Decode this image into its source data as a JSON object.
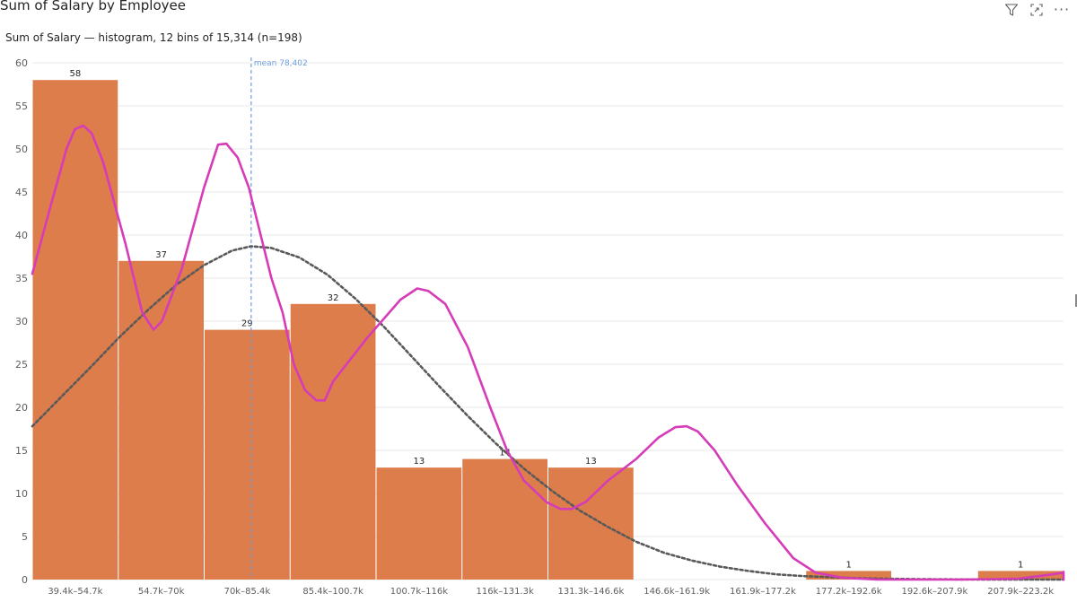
{
  "visual": {
    "title": "Sum of Salary by Employee",
    "subtitle": "Sum of Salary — histogram, 12 bins of 15,314 (n=198)",
    "icons": [
      "filter-icon",
      "focus-mode-icon",
      "more-options-icon"
    ],
    "more_label": "···"
  },
  "chart_data": {
    "type": "bar",
    "categories": [
      "39.4k–54.7k",
      "54.7k–70k",
      "70k–85.4k",
      "85.4k–100.7k",
      "100.7k–116k",
      "116k–131.3k",
      "131.3k–146.6k",
      "146.6k–161.9k",
      "161.9k–177.2k",
      "177.2k–192.6k",
      "192.6k–207.9k",
      "207.9k–223.2k"
    ],
    "values": [
      58,
      37,
      29,
      32,
      13,
      14,
      13,
      0,
      0,
      1,
      0,
      1
    ],
    "data_labels": [
      "58",
      "37",
      "29",
      "32",
      "13",
      "14",
      "13",
      "",
      "",
      "1",
      "",
      "1"
    ],
    "bin_start": 39400,
    "bin_width": 15314,
    "ylim": [
      0,
      60
    ],
    "yticks": [
      0,
      5,
      10,
      15,
      20,
      25,
      30,
      35,
      40,
      45,
      50,
      55,
      60
    ],
    "grid": true,
    "mean": {
      "value": 78402,
      "label": "mean 78,402"
    },
    "kde_curve": [
      [
        39400,
        35.5
      ],
      [
        42500,
        43
      ],
      [
        45500,
        50
      ],
      [
        47000,
        52.3
      ],
      [
        48500,
        52.7
      ],
      [
        50000,
        51.8
      ],
      [
        52000,
        48.5
      ],
      [
        56000,
        39
      ],
      [
        59000,
        31
      ],
      [
        61000,
        29
      ],
      [
        62500,
        30
      ],
      [
        66000,
        36
      ],
      [
        70000,
        45.5
      ],
      [
        72500,
        50.5
      ],
      [
        74000,
        50.6
      ],
      [
        76000,
        49
      ],
      [
        78000,
        45.5
      ],
      [
        82000,
        35
      ],
      [
        84000,
        31
      ],
      [
        86000,
        25
      ],
      [
        88000,
        22
      ],
      [
        90000,
        20.8
      ],
      [
        91500,
        20.8
      ],
      [
        93000,
        23
      ],
      [
        99000,
        28
      ],
      [
        105000,
        32.5
      ],
      [
        108000,
        33.8
      ],
      [
        110000,
        33.5
      ],
      [
        113000,
        32
      ],
      [
        117000,
        27
      ],
      [
        121000,
        20
      ],
      [
        124000,
        15
      ],
      [
        127000,
        11.5
      ],
      [
        131000,
        9
      ],
      [
        133500,
        8.2
      ],
      [
        135500,
        8.2
      ],
      [
        138000,
        9
      ],
      [
        142000,
        11.5
      ],
      [
        147000,
        14
      ],
      [
        151000,
        16.5
      ],
      [
        154000,
        17.7
      ],
      [
        156000,
        17.8
      ],
      [
        158000,
        17.2
      ],
      [
        161000,
        15
      ],
      [
        165000,
        11
      ],
      [
        170000,
        6.5
      ],
      [
        175000,
        2.5
      ],
      [
        179000,
        0.8
      ],
      [
        184000,
        0.2
      ],
      [
        190000,
        0
      ],
      [
        205000,
        0
      ],
      [
        215000,
        0.1
      ],
      [
        220000,
        0.5
      ],
      [
        225000,
        0.8
      ],
      [
        230000,
        0.9
      ],
      [
        235000,
        0.6
      ],
      [
        240000,
        0.2
      ],
      [
        245000,
        0
      ],
      [
        250000,
        0
      ],
      [
        255000,
        0
      ],
      [
        260000,
        0.1
      ],
      [
        265000,
        0.5
      ],
      [
        270000,
        0.8
      ],
      [
        276000,
        0.9
      ]
    ],
    "normal_curve": [
      [
        39400,
        17.8
      ],
      [
        45000,
        21.5
      ],
      [
        50000,
        24.8
      ],
      [
        55000,
        28.2
      ],
      [
        60000,
        31.3
      ],
      [
        65000,
        34.2
      ],
      [
        70000,
        36.5
      ],
      [
        75000,
        38.2
      ],
      [
        78400,
        38.7
      ],
      [
        82000,
        38.5
      ],
      [
        87000,
        37.4
      ],
      [
        92000,
        35.4
      ],
      [
        97000,
        32.6
      ],
      [
        102000,
        29.4
      ],
      [
        107000,
        25.9
      ],
      [
        112000,
        22.4
      ],
      [
        117000,
        19
      ],
      [
        122000,
        15.8
      ],
      [
        127000,
        12.9
      ],
      [
        132000,
        10.3
      ],
      [
        137000,
        8
      ],
      [
        142000,
        6.1
      ],
      [
        147000,
        4.4
      ],
      [
        152000,
        3.1
      ],
      [
        157000,
        2.2
      ],
      [
        162000,
        1.5
      ],
      [
        167000,
        1
      ],
      [
        172000,
        0.6
      ],
      [
        177000,
        0.4
      ],
      [
        187000,
        0.15
      ],
      [
        197000,
        0.05
      ],
      [
        210000,
        0
      ],
      [
        240000,
        0
      ],
      [
        276000,
        0
      ]
    ],
    "bar_color": "#dd7d4b",
    "kde_color": "#d63cb8",
    "normal_color": "#595959",
    "mean_color": "#6d9fdc",
    "label_color": "#252423",
    "axis_label_color": "#605e5c",
    "gridline_color": "#e8e8e8",
    "title": "Sum of Salary by Employee",
    "xlabel": "",
    "ylabel": ""
  }
}
